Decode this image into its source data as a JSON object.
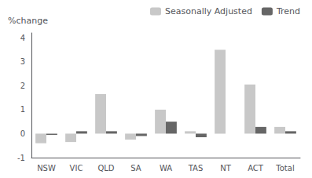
{
  "chart_data": {
    "type": "bar",
    "ylabel": "%change",
    "categories": [
      "NSW",
      "VIC",
      "QLD",
      "SA",
      "WA",
      "TAS",
      "NT",
      "ACT",
      "Total"
    ],
    "series": [
      {
        "name": "Seasonally Adjusted",
        "color": "#c8c8c8",
        "values": [
          -0.4,
          -0.35,
          1.65,
          -0.25,
          1.0,
          0.1,
          3.5,
          2.05,
          0.28
        ]
      },
      {
        "name": "Trend",
        "color": "#666666",
        "values": [
          -0.05,
          0.1,
          0.1,
          -0.1,
          0.5,
          -0.15,
          0.0,
          0.28,
          0.1
        ]
      }
    ],
    "ylim": [
      -1,
      4.2
    ],
    "yticks": [
      -1,
      0,
      1,
      2,
      3,
      4
    ],
    "grid": false,
    "legend": "upper right"
  }
}
